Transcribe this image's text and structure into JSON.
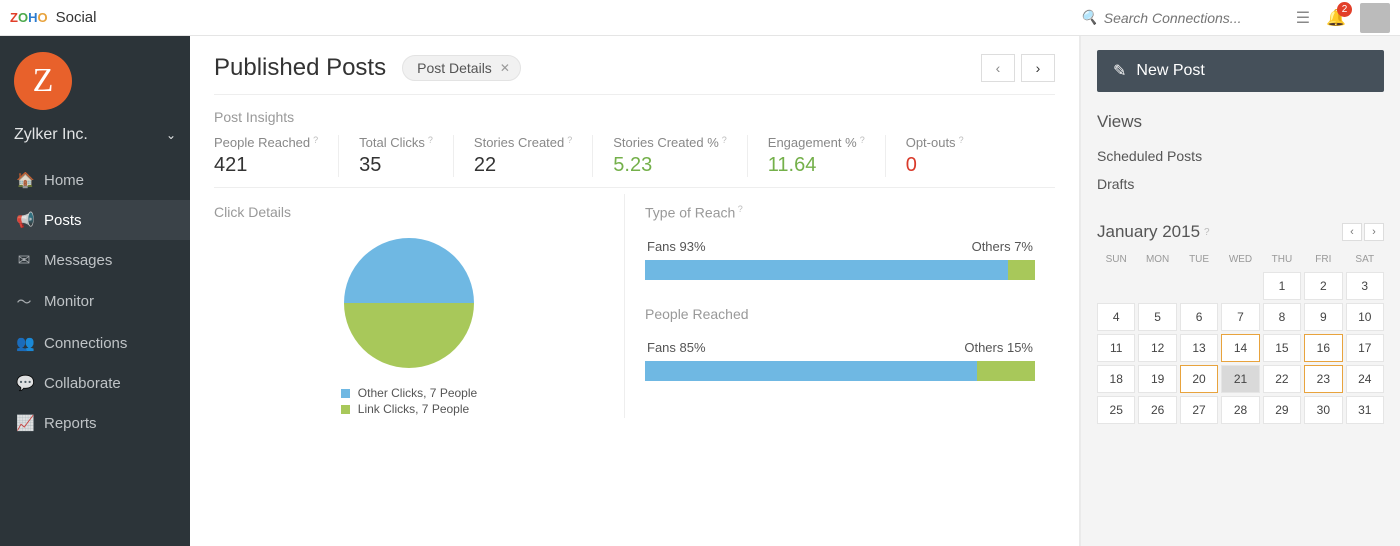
{
  "brand": {
    "app_name": "Social"
  },
  "topbar": {
    "search_placeholder": "Search Connections...",
    "notification_count": "2"
  },
  "org": {
    "name": "Zylker Inc.",
    "initial": "Z"
  },
  "nav": {
    "items": [
      {
        "label": "Home",
        "icon": "🏠",
        "active": false
      },
      {
        "label": "Posts",
        "icon": "📢",
        "active": true
      },
      {
        "label": "Messages",
        "icon": "✉",
        "active": false
      },
      {
        "label": "Monitor",
        "icon": "〜",
        "active": false
      },
      {
        "label": "Connections",
        "icon": "👥",
        "active": false
      },
      {
        "label": "Collaborate",
        "icon": "💬",
        "active": false
      },
      {
        "label": "Reports",
        "icon": "📈",
        "active": false
      }
    ]
  },
  "page": {
    "title": "Published Posts",
    "chip_label": "Post Details",
    "insights_label": "Post Insights"
  },
  "metrics": [
    {
      "label": "People Reached",
      "value": "421",
      "color": "#333333"
    },
    {
      "label": "Total Clicks",
      "value": "35",
      "color": "#333333"
    },
    {
      "label": "Stories Created",
      "value": "22",
      "color": "#333333"
    },
    {
      "label": "Stories Created %",
      "value": "5.23",
      "color": "#74b04a"
    },
    {
      "label": "Engagement %",
      "value": "11.64",
      "color": "#74b04a"
    },
    {
      "label": "Opt-outs",
      "value": "0",
      "color": "#d93a2b"
    }
  ],
  "click_details": {
    "title": "Click Details",
    "type": "pie",
    "slices": [
      {
        "label": "Other Clicks, 7 People",
        "value": 50,
        "color": "#6fb8e3"
      },
      {
        "label": "Link Clicks, 7 People",
        "value": 50,
        "color": "#a8c85a"
      }
    ],
    "background_color": "#ffffff"
  },
  "reach_charts": {
    "type_of_reach": {
      "title": "Type of Reach",
      "type": "stacked-bar",
      "left_label": "Fans 93%",
      "right_label": "Others 7%",
      "segments": [
        {
          "pct": 93,
          "color": "#6fb8e3"
        },
        {
          "pct": 7,
          "color": "#a8c85a"
        }
      ]
    },
    "people_reached": {
      "title": "People Reached",
      "type": "stacked-bar",
      "left_label": "Fans 85%",
      "right_label": "Others 15%",
      "segments": [
        {
          "pct": 85,
          "color": "#6fb8e3"
        },
        {
          "pct": 15,
          "color": "#a8c85a"
        }
      ]
    }
  },
  "rightpanel": {
    "new_post_label": "New Post",
    "views_heading": "Views",
    "view_links": [
      {
        "label": "Scheduled Posts"
      },
      {
        "label": "Drafts"
      }
    ],
    "calendar": {
      "title": "January 2015",
      "dow": [
        "SUN",
        "MON",
        "TUE",
        "WED",
        "THU",
        "FRI",
        "SAT"
      ],
      "leading_blanks": 4,
      "days": 31,
      "highlighted": [
        14,
        16,
        20,
        23
      ],
      "today": 21
    }
  },
  "colors": {
    "sidebar_bg": "#2c3439",
    "brand_orange": "#e8612b",
    "accent_blue": "#6fb8e3",
    "accent_green": "#a8c85a",
    "metric_green": "#74b04a",
    "metric_red": "#d93a2b"
  }
}
